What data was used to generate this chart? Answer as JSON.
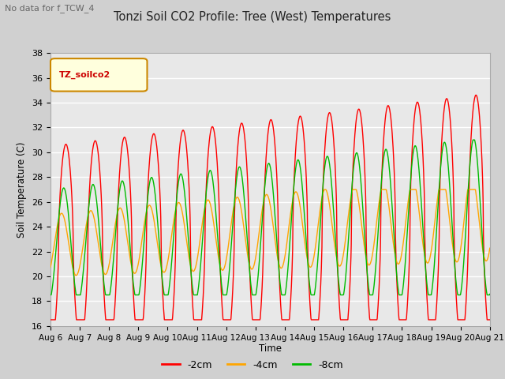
{
  "title": "Tonzi Soil CO2 Profile: Tree (West) Temperatures",
  "subtitle": "No data for f_TCW_4",
  "ylabel": "Soil Temperature (C)",
  "xlabel": "Time",
  "ylim": [
    16,
    38
  ],
  "xlim": [
    0,
    15
  ],
  "yticks": [
    16,
    18,
    20,
    22,
    24,
    26,
    28,
    30,
    32,
    34,
    36,
    38
  ],
  "xtick_labels": [
    "Aug 6",
    "Aug 7",
    "Aug 8",
    "Aug 9",
    "Aug 10",
    "Aug 11",
    "Aug 12",
    "Aug 13",
    "Aug 14",
    "Aug 15",
    "Aug 16",
    "Aug 17",
    "Aug 18",
    "Aug 19",
    "Aug 20",
    "Aug 21"
  ],
  "legend_title": "TZ_soilco2",
  "series": [
    {
      "label": "-2cm",
      "color": "#ff0000"
    },
    {
      "label": "-4cm",
      "color": "#ffa500"
    },
    {
      "label": "-8cm",
      "color": "#00bb00"
    }
  ],
  "fig_bg": "#d0d0d0",
  "plot_bg": "#e8e8e8",
  "grid_color": "#ffffff"
}
